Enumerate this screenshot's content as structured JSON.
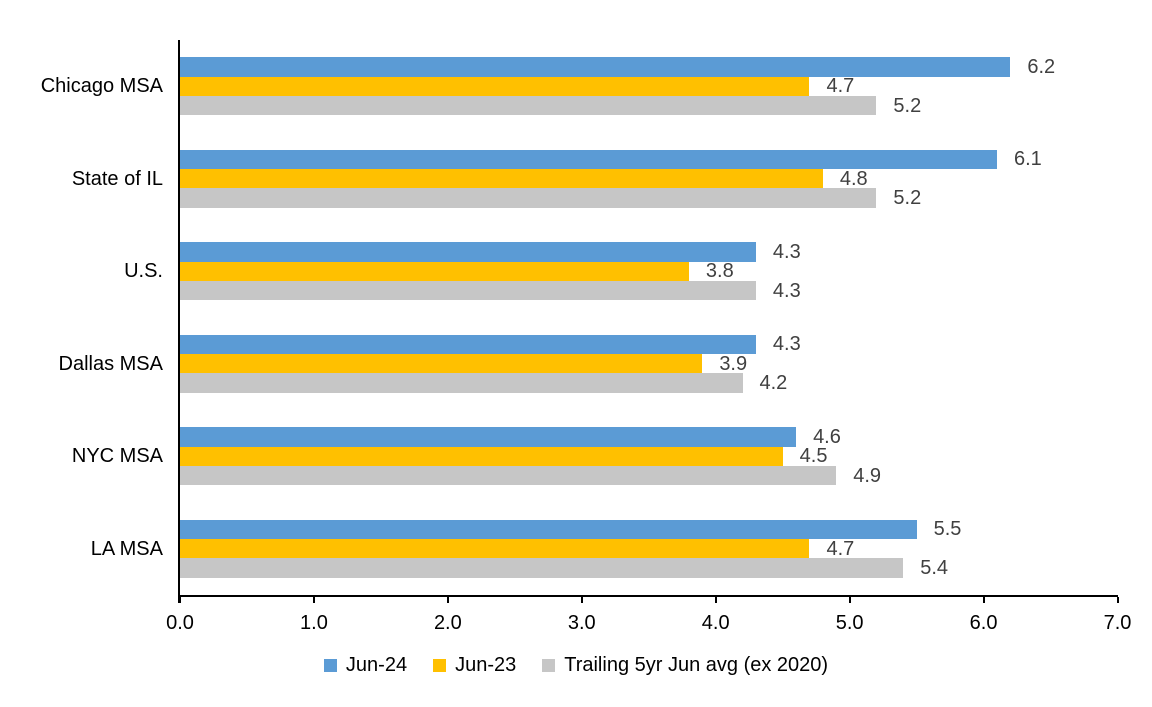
{
  "chart_data": {
    "type": "bar",
    "orientation": "horizontal",
    "title": "",
    "categories": [
      "Chicago MSA",
      "State of IL",
      "U.S.",
      "Dallas MSA",
      "NYC MSA",
      "LA MSA"
    ],
    "series": [
      {
        "name": "Jun-24",
        "color": "#5B9BD5",
        "values": [
          6.2,
          6.1,
          4.3,
          4.3,
          4.6,
          5.5
        ]
      },
      {
        "name": "Jun-23",
        "color": "#FFC000",
        "values": [
          4.7,
          4.8,
          3.8,
          3.9,
          4.5,
          4.7
        ]
      },
      {
        "name": "Trailing 5yr Jun avg (ex 2020)",
        "color": "#C6C6C6",
        "values": [
          5.2,
          5.2,
          4.3,
          4.2,
          4.9,
          5.4
        ]
      }
    ],
    "xlim": [
      0.0,
      7.0
    ],
    "x_tick_labels": [
      "0.0",
      "1.0",
      "2.0",
      "3.0",
      "4.0",
      "5.0",
      "6.0",
      "7.0"
    ],
    "value_labels_shown": true,
    "grid": false,
    "legend_position": "bottom"
  },
  "style": {
    "axis_color": "#000000",
    "text_color": "#000000",
    "value_label_color": "#404040",
    "background_color": "#FFFFFF"
  }
}
